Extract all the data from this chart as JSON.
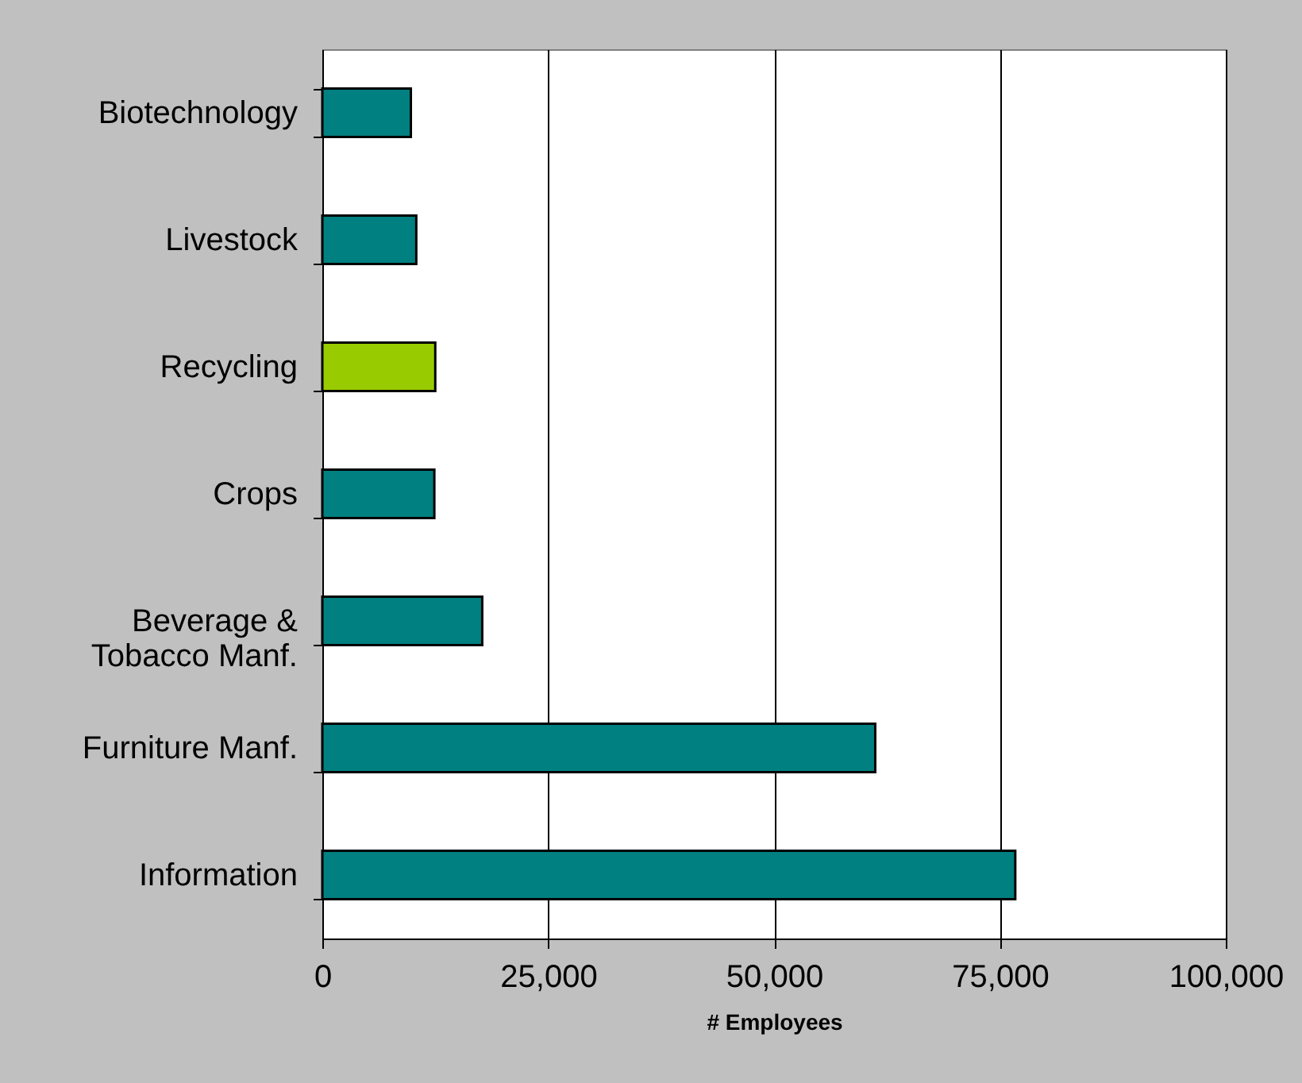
{
  "chart_data": {
    "type": "bar",
    "orientation": "horizontal",
    "xlabel": "# Employees",
    "categories": [
      "Biotechnology",
      "Livestock",
      "Recycling",
      "Crops",
      "Beverage & Tobacco Manf.",
      "Furniture Manf.",
      "Information"
    ],
    "values": [
      9800,
      10400,
      12500,
      12400,
      17700,
      61200,
      76700
    ],
    "colors": [
      "#008080",
      "#008080",
      "#99cc00",
      "#008080",
      "#008080",
      "#008080",
      "#008080"
    ],
    "xlim": [
      0,
      100000
    ],
    "xticks": [
      0,
      {
        "value": 25000,
        "label": "25,000"
      },
      {
        "value": 50000,
        "label": "50,000"
      },
      {
        "value": 75000,
        "label": "75,000"
      },
      {
        "value": 100000,
        "label": "100,000"
      }
    ],
    "grid": "x"
  }
}
